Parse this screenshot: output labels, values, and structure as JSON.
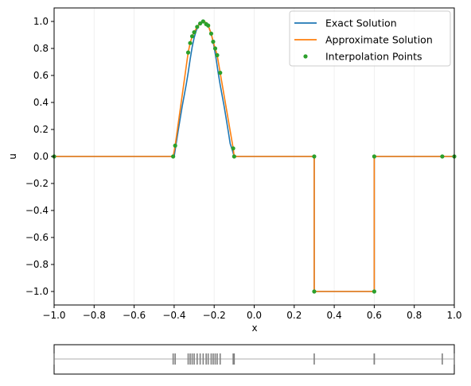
{
  "chart_data": [
    {
      "type": "line",
      "xlabel": "x",
      "ylabel": "u",
      "xlim": [
        -1.0,
        1.0
      ],
      "ylim": [
        -1.1,
        1.1
      ],
      "xticks": [
        "−1.0",
        "−0.8",
        "−0.6",
        "−0.4",
        "−0.2",
        "0.0",
        "0.2",
        "0.4",
        "0.6",
        "0.8",
        "1.0"
      ],
      "xtick_values": [
        -1.0,
        -0.8,
        -0.6,
        -0.4,
        -0.2,
        0.0,
        0.2,
        0.4,
        0.6,
        0.8,
        1.0
      ],
      "yticks": [
        "−1.0",
        "−0.8",
        "−0.6",
        "−0.4",
        "−0.2",
        "0.0",
        "0.2",
        "0.4",
        "0.6",
        "0.8",
        "1.0"
      ],
      "ytick_values": [
        -1.0,
        -0.8,
        -0.6,
        -0.4,
        -0.2,
        0.0,
        0.2,
        0.4,
        0.6,
        0.8,
        1.0
      ],
      "grid": "vertical",
      "legend_position": "top-right",
      "series": [
        {
          "name": "Exact Solution",
          "color": "#1f77b4",
          "style": "line",
          "x": [
            -1.0,
            -0.4,
            -0.39,
            -0.38,
            -0.37,
            -0.36,
            -0.35,
            -0.34,
            -0.33,
            -0.32,
            -0.31,
            -0.3,
            -0.29,
            -0.28,
            -0.27,
            -0.26,
            -0.25,
            -0.24,
            -0.23,
            -0.22,
            -0.21,
            -0.2,
            -0.19,
            -0.18,
            -0.17,
            -0.16,
            -0.15,
            -0.14,
            -0.13,
            -0.12,
            -0.11,
            -0.1,
            0.3,
            0.3,
            0.6,
            0.6,
            1.0
          ],
          "y": [
            0.0,
            0.0,
            0.095,
            0.19,
            0.28,
            0.37,
            0.45,
            0.53,
            0.62,
            0.72,
            0.81,
            0.88,
            0.93,
            0.97,
            0.99,
            1.0,
            1.0,
            0.99,
            0.97,
            0.93,
            0.88,
            0.81,
            0.72,
            0.62,
            0.53,
            0.45,
            0.37,
            0.28,
            0.19,
            0.095,
            0.05,
            0.0,
            0.0,
            -1.0,
            -1.0,
            0.0,
            0.0
          ]
        },
        {
          "name": "Approximate Solution",
          "color": "#ff7f0e",
          "style": "line",
          "x": [
            -1.0,
            -0.405,
            -0.395,
            -0.33,
            -0.32,
            -0.31,
            -0.3,
            -0.285,
            -0.27,
            -0.26,
            -0.25,
            -0.24,
            -0.23,
            -0.215,
            -0.205,
            -0.195,
            -0.185,
            -0.17,
            -0.105,
            -0.1,
            0.3,
            0.3,
            0.6,
            0.6,
            0.94,
            1.0
          ],
          "y": [
            0.0,
            0.0,
            0.08,
            0.77,
            0.84,
            0.89,
            0.92,
            0.96,
            0.985,
            1.0,
            1.0,
            0.99,
            0.97,
            0.91,
            0.85,
            0.8,
            0.75,
            0.62,
            0.06,
            0.0,
            0.0,
            -1.0,
            -1.0,
            0.0,
            0.0,
            0.0
          ]
        },
        {
          "name": "Interpolation Points",
          "color": "#2ca02c",
          "style": "scatter",
          "x": [
            -1.0,
            -0.405,
            -0.395,
            -0.33,
            -0.32,
            -0.31,
            -0.3,
            -0.285,
            -0.27,
            -0.255,
            -0.24,
            -0.23,
            -0.215,
            -0.205,
            -0.195,
            -0.185,
            -0.17,
            -0.105,
            -0.1,
            0.3,
            0.3,
            0.6,
            0.6,
            0.94,
            1.0
          ],
          "y": [
            0.0,
            0.0,
            0.08,
            0.77,
            0.84,
            0.89,
            0.92,
            0.96,
            0.985,
            1.0,
            0.98,
            0.97,
            0.91,
            0.85,
            0.8,
            0.75,
            0.62,
            0.06,
            0.0,
            0.0,
            -1.0,
            -1.0,
            0.0,
            0.0,
            0.0
          ]
        }
      ]
    },
    {
      "type": "rug",
      "xlim": [
        -1.0,
        1.0
      ],
      "line_color": "#c8c8c8",
      "mark_color": "#808080",
      "x": [
        -1.0,
        -0.405,
        -0.395,
        -0.33,
        -0.32,
        -0.31,
        -0.3,
        -0.285,
        -0.27,
        -0.255,
        -0.24,
        -0.23,
        -0.215,
        -0.205,
        -0.195,
        -0.185,
        -0.17,
        -0.105,
        -0.1,
        0.3,
        0.6,
        0.6,
        0.94,
        1.0
      ]
    }
  ]
}
